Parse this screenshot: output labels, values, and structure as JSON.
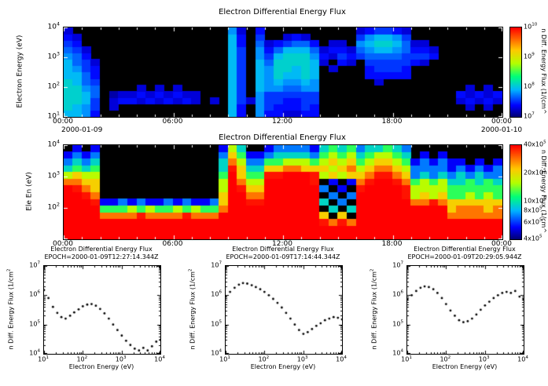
{
  "colors": {
    "page_background": "#ffffff",
    "spectrogram_background": "#000000",
    "frame": "#000000",
    "marker": "#000000",
    "rainbow_stops": [
      [
        0.0,
        0,
        0,
        120
      ],
      [
        0.125,
        0,
        0,
        255
      ],
      [
        0.3,
        0,
        180,
        255
      ],
      [
        0.45,
        0,
        255,
        120
      ],
      [
        0.6,
        180,
        255,
        0
      ],
      [
        0.75,
        255,
        200,
        0
      ],
      [
        0.875,
        255,
        100,
        0
      ],
      [
        1.0,
        255,
        0,
        0
      ]
    ]
  },
  "chart_data": [
    {
      "type": "heatmap",
      "title": "Electron Differential Energy Flux",
      "ylabel": "Electron Energy (eV)",
      "yticks": [
        "10^4",
        "10^3",
        "10^2",
        "10^1"
      ],
      "y_decades": 3,
      "energy_range_ev": [
        10,
        10000
      ],
      "xticks": [
        "00:00",
        "06:00",
        "12:00",
        "18:00",
        "00:00"
      ],
      "xtick_dates": {
        "left": "2000-01-09",
        "right": "2000-01-10"
      },
      "time_span_hours": 24,
      "colorbar": {
        "label": "n Diff. Energy Flux (1/(cm^",
        "tick_labels": [
          "10^10",
          "10^9",
          "10^8",
          "10^7"
        ],
        "tick_values": [
          10000000000.0,
          1000000000.0,
          100000000.0,
          10000000.0
        ],
        "range_log10": [
          7,
          10
        ]
      },
      "grid": {
        "description": "log10 flux; chars 0-9 map vmin..vmax, '.' = below threshold (black); 48 half-hour columns x 14 log-energy rows, rows listed bottom(10eV) to top(10keV)",
        "vmin_log10": 7.0,
        "vmax_log10": 8.2,
        "rows_bottom_to_top": [
          [
            "7763",
            ".............",
            ".",
            "73",
            ".",
            "6",
            "332233",
            "....",
            "......",
            "....",
            "......"
          ],
          [
            "8764",
            ".2...........",
            ".",
            "73",
            ".",
            "6",
            "433343",
            "....",
            "......",
            "....",
            "..2.2."
          ],
          [
            "8874",
            ".2332323232.2",
            ".",
            "74",
            "2",
            "6",
            "443344",
            "....",
            "......",
            "....",
            ".23232"
          ],
          [
            "8875",
            ".1223232322..",
            ".",
            "74",
            ".",
            "6",
            "444444",
            "....",
            "......",
            "....",
            ".32323"
          ],
          [
            "8865",
            "....2.2.2....",
            ".",
            "74",
            ".",
            "7",
            "665566",
            "....",
            "......",
            "....",
            "..2.2."
          ],
          [
            "8754",
            ".............",
            ".",
            "74",
            ".",
            "7",
            "676676",
            "....",
            "..2...",
            "....",
            "......"
          ],
          [
            "7753",
            ".............",
            ".",
            "74",
            ".",
            "7",
            "687787",
            "....",
            ".33333",
            "....",
            "......"
          ],
          [
            "7643",
            ".............",
            ".",
            "74",
            ".",
            "7",
            "688787",
            ".2..",
            ".34443",
            "....",
            "......"
          ],
          [
            "7542",
            ".............",
            ".",
            "74",
            ".",
            "7",
            "588887",
            "2.32",
            ".44444",
            "32..",
            "......"
          ],
          [
            "653.",
            ".............",
            ".",
            "74",
            ".",
            "6",
            "478886",
            "3243",
            "455554",
            "443.",
            "......"
          ],
          [
            "542.",
            ".............",
            ".",
            "74",
            ".",
            "6",
            "357775",
            "2332",
            "567765",
            "332.",
            "......"
          ],
          [
            "43..",
            ".............",
            ".",
            "73",
            ".",
            "5",
            "234553",
            ".22.",
            "678875",
            "22..",
            "......"
          ],
          [
            "32..",
            ".............",
            ".",
            "73",
            ".",
            "4",
            "..232.",
            "....",
            "467764",
            "....",
            "......"
          ],
          [
            "2...",
            ".............",
            ".",
            "62",
            ".",
            "3",
            "......",
            "....",
            "234432",
            "....",
            "......"
          ]
        ]
      }
    },
    {
      "type": "heatmap",
      "title": "Electron Differential Energy Flux",
      "ylabel": "Ele En (eV)",
      "yticks": [
        "10^4",
        "10^3",
        "10^2"
      ],
      "y_decades": 3,
      "energy_range_ev": [
        10,
        10000
      ],
      "xticks": [
        "00:00",
        "06:00",
        "12:00",
        "18:00",
        "00:00"
      ],
      "time_span_hours": 24,
      "colorbar": {
        "label": "n Diff. Energy Flux (1/cm^",
        "tick_labels": [
          "40x10^5",
          "20x10^5",
          "10x10^5",
          "8x10^5",
          "6x10^5",
          "4x10^5"
        ],
        "tick_values": [
          4000000.0,
          2000000.0,
          1000000.0,
          800000.0,
          600000.0,
          400000.0
        ],
        "range_log10": [
          5.602,
          6.602
        ]
      },
      "grid": {
        "description": "log10 flux; chars 0-9 map vmin..vmax, '.' = below threshold (black); 48 half-hour columns x 14 log-energy rows, rows listed bottom to top",
        "vmin_log10": 5.6,
        "vmax_log10": 6.7,
        "rows_bottom_to_top": [
          [
            "9999",
            "9999999999999",
            "9",
            "99",
            "9",
            "9",
            "999999",
            "9999",
            "999999",
            "9999",
            "999999"
          ],
          [
            "9999",
            "9999999999999",
            "9",
            "99",
            "9",
            "9",
            "999999",
            "9999",
            "999999",
            "9999",
            "999999"
          ],
          [
            "9999",
            "9999999999999",
            "9",
            "99",
            "9",
            "9",
            "999999",
            "8787",
            "999999",
            "9999",
            "999999"
          ],
          [
            "9999",
            "7777877778777",
            "9",
            "99",
            "9",
            "9",
            "999999",
            "6.6.",
            "999999",
            "9999",
            "777777"
          ],
          [
            "9999",
            "4445454454544",
            "7",
            "99",
            "9",
            "9",
            "999999",
            ".3.3",
            "999999",
            "9999",
            "677767"
          ],
          [
            "9998",
            "1121211212112",
            "6",
            "99",
            "8",
            "8",
            "999999",
            "3.2.",
            "999999",
            "7787",
            "666666"
          ],
          [
            "9987",
            ".............",
            "6",
            "99",
            "7",
            "7",
            "999999",
            ".2.2",
            "999998",
            "5656",
            "445454"
          ],
          [
            "9876",
            ".............",
            "5",
            "98",
            "6",
            "6",
            "999999",
            "2.1.",
            "899998",
            "5555",
            "444444"
          ],
          [
            "7766",
            ".............",
            "5",
            "97",
            "5",
            "5",
            "999998",
            ".1.1",
            "789987",
            "4545",
            "334343"
          ],
          [
            "5655",
            ".............",
            "4",
            "96",
            "4",
            "4",
            "889998",
            "5656",
            "678876",
            "2323",
            "232322"
          ],
          [
            "3434",
            ".............",
            "3",
            "86",
            "3",
            "3",
            "667766",
            "6567",
            "567765",
            "2222",
            "121212"
          ],
          [
            "2323",
            ".............",
            "3",
            "75",
            "2",
            "2",
            "445554",
            "5656",
            "456654",
            "1212",
            "11.1.1"
          ],
          [
            "1212",
            ".............",
            "2",
            "64",
            "1",
            "1",
            "233332",
            "4545",
            "345543",
            ".1.1",
            "......"
          ],
          [
            ".1.1",
            ".............",
            "1",
            "53",
            ".",
            ".",
            "122221",
            "3434",
            "233432",
            "....",
            "......"
          ]
        ]
      }
    },
    {
      "type": "scatter",
      "title": "Electron Differential Energy Flux",
      "subtitle": "EPOCH=2000-01-09T12:27:14.344Z",
      "xlabel": "Electron Energy (eV)",
      "ylabel": "n Diff. Energy Flux (1/cm^2",
      "xticks": [
        "10^1",
        "10^2",
        "10^3",
        "10^4"
      ],
      "yticks": [
        "10^7",
        "10^6",
        "10^5",
        "10^4"
      ],
      "xlim_log10": [
        1,
        4
      ],
      "ylim_log10": [
        4,
        7
      ],
      "points": [
        [
          10,
          1500000.0
        ],
        [
          13,
          800000.0
        ],
        [
          17,
          400000.0
        ],
        [
          22,
          250000.0
        ],
        [
          28,
          180000.0
        ],
        [
          36,
          160000.0
        ],
        [
          47,
          200000.0
        ],
        [
          60,
          260000.0
        ],
        [
          78,
          330000.0
        ],
        [
          100,
          420000.0
        ],
        [
          130,
          480000.0
        ],
        [
          168,
          500000.0
        ],
        [
          217,
          440000.0
        ],
        [
          280,
          340000.0
        ],
        [
          362,
          240000.0
        ],
        [
          468,
          160000.0
        ],
        [
          605,
          100000.0
        ],
        [
          781,
          65000.0
        ],
        [
          1010,
          42000.0
        ],
        [
          1304,
          28000.0
        ],
        [
          1685,
          20000.0
        ],
        [
          2177,
          15000.0
        ],
        [
          2812,
          13000.0
        ],
        [
          3633,
          16000.0
        ],
        [
          4694,
          13000.0
        ],
        [
          6065,
          18000.0
        ],
        [
          7836,
          26000.0
        ],
        [
          10000,
          30000.0
        ]
      ]
    },
    {
      "type": "scatter",
      "title": "Electron Differential Energy Flux",
      "subtitle": "EPOCH=2000-01-09T17:14:44.344Z",
      "xlabel": "Electron Energy (eV)",
      "ylabel": "n Diff. Energy Flux (1/cm^2",
      "xticks": [
        "10^1",
        "10^2",
        "10^3",
        "10^4"
      ],
      "yticks": [
        "10^7",
        "10^6",
        "10^5",
        "10^4"
      ],
      "xlim_log10": [
        1,
        4
      ],
      "ylim_log10": [
        4,
        7
      ],
      "points": [
        [
          10,
          900000.0
        ],
        [
          13,
          1300000.0
        ],
        [
          17,
          1800000.0
        ],
        [
          22,
          2300000.0
        ],
        [
          28,
          2600000.0
        ],
        [
          36,
          2500000.0
        ],
        [
          47,
          2200000.0
        ],
        [
          60,
          1900000.0
        ],
        [
          78,
          1600000.0
        ],
        [
          100,
          1300000.0
        ],
        [
          130,
          1000000.0
        ],
        [
          168,
          750000.0
        ],
        [
          217,
          550000.0
        ],
        [
          280,
          380000.0
        ],
        [
          362,
          250000.0
        ],
        [
          468,
          160000.0
        ],
        [
          605,
          100000.0
        ],
        [
          781,
          65000.0
        ],
        [
          1010,
          48000.0
        ],
        [
          1304,
          55000.0
        ],
        [
          1685,
          70000.0
        ],
        [
          2177,
          90000.0
        ],
        [
          2812,
          110000.0
        ],
        [
          3633,
          140000.0
        ],
        [
          4694,
          160000.0
        ],
        [
          6065,
          180000.0
        ],
        [
          7836,
          170000.0
        ],
        [
          10000,
          150000.0
        ]
      ]
    },
    {
      "type": "scatter",
      "title": "Electron Differential Energy Flux",
      "subtitle": "EPOCH=2000-01-09T20:29:05.944Z",
      "xlabel": "Electron Energy (eV)",
      "ylabel": "n Diff. Energy Flux (1/cm^2",
      "xticks": [
        "10^1",
        "10^2",
        "10^3",
        "10^4"
      ],
      "yticks": [
        "10^7",
        "10^6",
        "10^5",
        "10^4"
      ],
      "xlim_log10": [
        1,
        4
      ],
      "ylim_log10": [
        4,
        7
      ],
      "points": [
        [
          10,
          700000.0
        ],
        [
          13,
          1000000.0
        ],
        [
          17,
          1400000.0
        ],
        [
          22,
          1800000.0
        ],
        [
          28,
          2000000.0
        ],
        [
          36,
          1900000.0
        ],
        [
          47,
          1600000.0
        ],
        [
          60,
          1200000.0
        ],
        [
          78,
          800000.0
        ],
        [
          100,
          500000.0
        ],
        [
          130,
          300000.0
        ],
        [
          168,
          200000.0
        ],
        [
          217,
          140000.0
        ],
        [
          280,
          120000.0
        ],
        [
          362,
          130000.0
        ],
        [
          468,
          160000.0
        ],
        [
          605,
          220000.0
        ],
        [
          781,
          320000.0
        ],
        [
          1010,
          450000.0
        ],
        [
          1304,
          600000.0
        ],
        [
          1685,
          800000.0
        ],
        [
          2177,
          1000000.0
        ],
        [
          2812,
          1200000.0
        ],
        [
          3633,
          1300000.0
        ],
        [
          4694,
          1200000.0
        ],
        [
          6065,
          1400000.0
        ],
        [
          7836,
          900000.0
        ],
        [
          10000,
          700000.0
        ]
      ]
    }
  ]
}
